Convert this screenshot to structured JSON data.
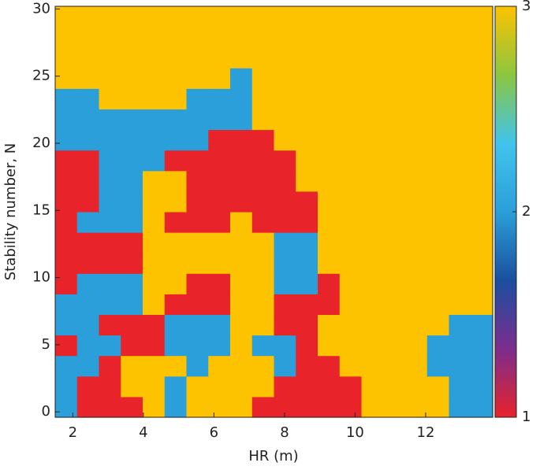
{
  "chart_data": {
    "type": "heatmap",
    "xlabel": "HR (m)",
    "ylabel": "Stability number, N",
    "xlim": [
      1.5,
      13.9
    ],
    "ylim": [
      -0.4,
      30.2
    ],
    "xticks": [
      2,
      4,
      6,
      8,
      10,
      12
    ],
    "yticks": [
      0,
      5,
      10,
      15,
      20,
      25,
      30
    ],
    "x": [
      1.81,
      2.43,
      3.05,
      3.67,
      4.29,
      4.91,
      5.53,
      6.15,
      6.77,
      7.39,
      8.01,
      8.63,
      9.25,
      9.87,
      10.49,
      11.11,
      11.73,
      12.35,
      12.97,
      13.59
    ],
    "y": [
      0.37,
      1.9,
      3.43,
      4.96,
      6.49,
      8.02,
      9.55,
      11.08,
      12.61,
      14.14,
      15.67,
      17.2,
      18.73,
      20.26,
      21.79,
      23.32,
      24.85,
      26.38,
      27.91,
      29.44
    ],
    "z": [
      [
        2,
        1,
        1,
        1,
        3,
        2,
        3,
        3,
        3,
        1,
        1,
        1,
        1,
        1,
        3,
        3,
        3,
        3,
        2,
        2
      ],
      [
        2,
        1,
        1,
        3,
        3,
        2,
        3,
        3,
        3,
        3,
        1,
        1,
        1,
        1,
        3,
        3,
        3,
        3,
        2,
        2
      ],
      [
        2,
        2,
        1,
        3,
        3,
        3,
        2,
        3,
        3,
        3,
        2,
        1,
        1,
        3,
        3,
        3,
        3,
        2,
        2,
        2
      ],
      [
        1,
        2,
        2,
        1,
        1,
        2,
        2,
        2,
        3,
        2,
        2,
        1,
        3,
        3,
        3,
        3,
        3,
        2,
        2,
        2
      ],
      [
        2,
        2,
        1,
        1,
        1,
        2,
        2,
        2,
        3,
        3,
        1,
        1,
        3,
        3,
        3,
        3,
        3,
        3,
        2,
        2
      ],
      [
        2,
        2,
        2,
        2,
        3,
        1,
        1,
        1,
        3,
        3,
        1,
        1,
        1,
        3,
        3,
        3,
        3,
        3,
        3,
        3
      ],
      [
        1,
        2,
        2,
        2,
        3,
        3,
        1,
        1,
        3,
        3,
        2,
        2,
        1,
        3,
        3,
        3,
        3,
        3,
        3,
        3
      ],
      [
        1,
        1,
        1,
        1,
        3,
        3,
        3,
        3,
        3,
        3,
        2,
        2,
        3,
        3,
        3,
        3,
        3,
        3,
        3,
        3
      ],
      [
        1,
        1,
        1,
        1,
        3,
        3,
        3,
        3,
        3,
        3,
        2,
        2,
        3,
        3,
        3,
        3,
        3,
        3,
        3,
        3
      ],
      [
        1,
        2,
        2,
        2,
        3,
        1,
        1,
        1,
        3,
        1,
        1,
        1,
        3,
        3,
        3,
        3,
        3,
        3,
        3,
        3
      ],
      [
        1,
        1,
        2,
        2,
        3,
        3,
        1,
        1,
        1,
        1,
        1,
        1,
        3,
        3,
        3,
        3,
        3,
        3,
        3,
        3
      ],
      [
        1,
        1,
        2,
        2,
        3,
        3,
        1,
        1,
        1,
        1,
        1,
        3,
        3,
        3,
        3,
        3,
        3,
        3,
        3,
        3
      ],
      [
        1,
        1,
        2,
        2,
        2,
        1,
        1,
        1,
        1,
        1,
        1,
        3,
        3,
        3,
        3,
        3,
        3,
        3,
        3,
        3
      ],
      [
        2,
        2,
        2,
        2,
        2,
        2,
        2,
        1,
        1,
        1,
        3,
        3,
        3,
        3,
        3,
        3,
        3,
        3,
        3,
        3
      ],
      [
        2,
        2,
        2,
        2,
        2,
        2,
        2,
        2,
        2,
        3,
        3,
        3,
        3,
        3,
        3,
        3,
        3,
        3,
        3,
        3
      ],
      [
        2,
        2,
        3,
        3,
        3,
        3,
        2,
        2,
        2,
        3,
        3,
        3,
        3,
        3,
        3,
        3,
        3,
        3,
        3,
        3
      ],
      [
        3,
        3,
        3,
        3,
        3,
        3,
        3,
        3,
        2,
        3,
        3,
        3,
        3,
        3,
        3,
        3,
        3,
        3,
        3,
        3
      ],
      [
        3,
        3,
        3,
        3,
        3,
        3,
        3,
        3,
        3,
        3,
        3,
        3,
        3,
        3,
        3,
        3,
        3,
        3,
        3,
        3
      ],
      [
        3,
        3,
        3,
        3,
        3,
        3,
        3,
        3,
        3,
        3,
        3,
        3,
        3,
        3,
        3,
        3,
        3,
        3,
        3,
        3
      ],
      [
        3,
        3,
        3,
        3,
        3,
        3,
        3,
        3,
        3,
        3,
        3,
        3,
        3,
        3,
        3,
        3,
        3,
        3,
        3,
        3
      ]
    ],
    "zlim": [
      1,
      3
    ],
    "zticks": [
      1,
      2,
      3
    ],
    "colormap": [
      "#e8232a",
      "#7b2d8e",
      "#1a4fa0",
      "#2b9fd9",
      "#40c4ec",
      "#8cc63f",
      "#fdc200"
    ]
  }
}
